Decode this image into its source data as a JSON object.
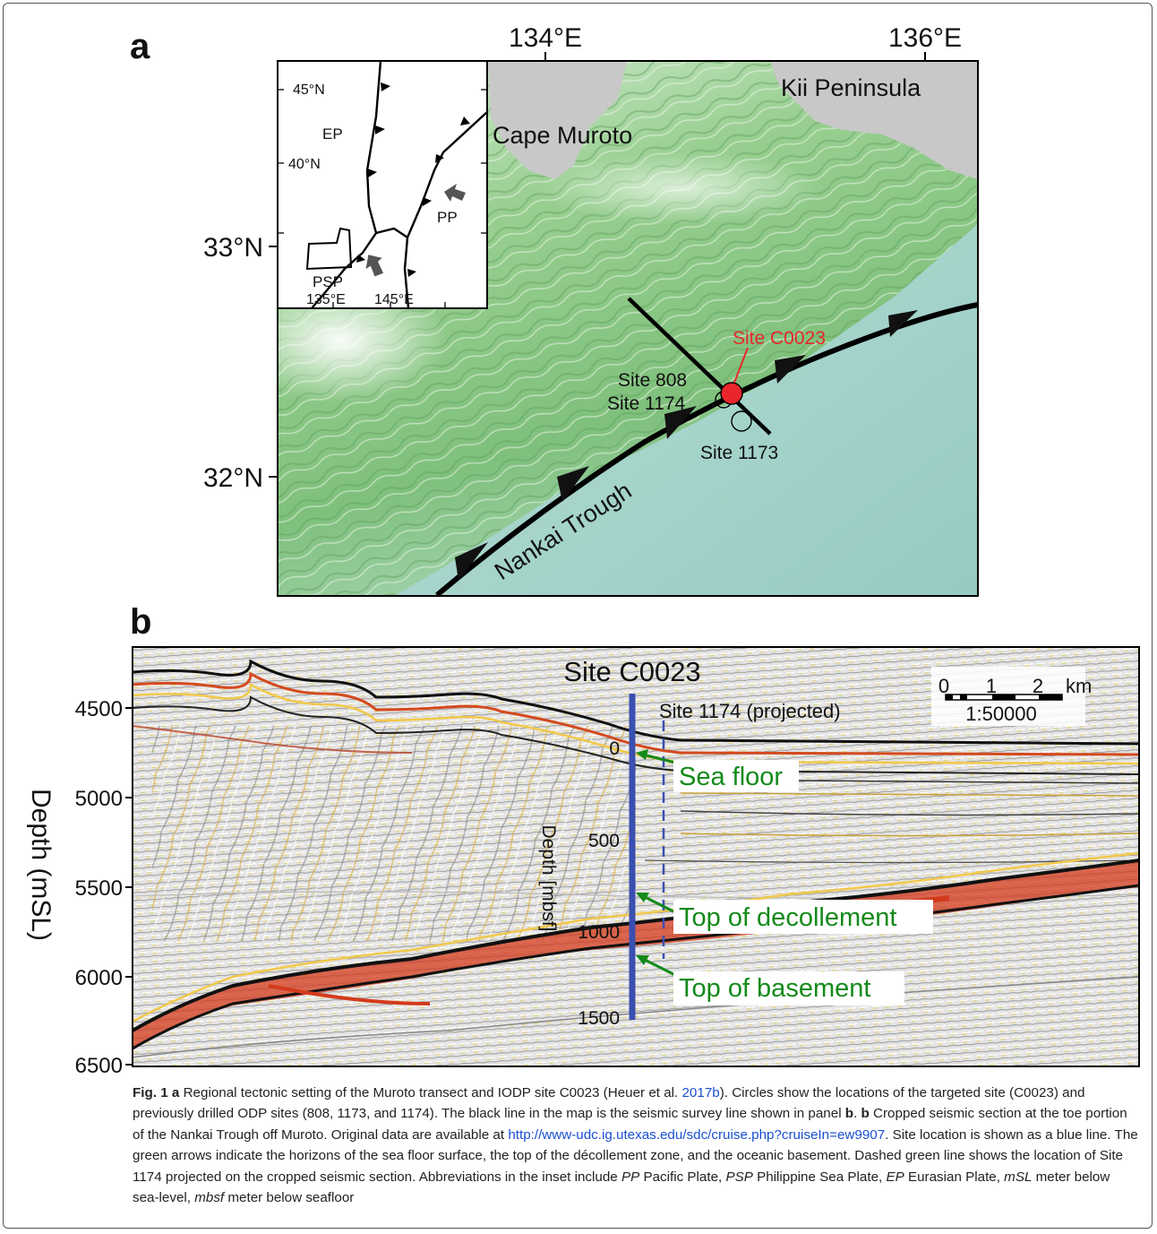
{
  "panel_a": {
    "letter": "a",
    "lon_labels": [
      "134°E",
      "136°E"
    ],
    "lat_labels": [
      "33°N",
      "32°N"
    ],
    "places": {
      "kii": "Kii Peninsula",
      "muroto": "Cape Muroto",
      "trough": "Nankai Trough"
    },
    "sites": {
      "c0023": "Site C0023",
      "s808": "Site 808",
      "s1174": "Site 1174",
      "s1173": "Site 1173"
    },
    "inset": {
      "lat_labels": [
        "45°N",
        "40°N"
      ],
      "lon_labels": [
        "135°E",
        "145°E"
      ],
      "plates": {
        "ep": "EP",
        "pp": "PP",
        "psp": "PSP"
      }
    },
    "colors": {
      "site_marker": "#e8262b",
      "site_label": "#e8262b",
      "land": "#c8c8c8"
    }
  },
  "panel_b": {
    "letter": "b",
    "ylabel": "Depth (mSL)",
    "yticks": [
      "4500",
      "5000",
      "5500",
      "6000",
      "6500"
    ],
    "site_title": "Site C0023",
    "projected_label": "Site 1174 (projected)",
    "mbsf_label": "Depth [mbsf]",
    "mbsf_ticks": [
      "0",
      "500",
      "1000",
      "1500"
    ],
    "horizons": {
      "sea_floor": "Sea floor",
      "decollement": "Top of decollement",
      "basement": "Top of basement"
    },
    "scalebar": {
      "ticks": [
        "0",
        "1",
        "2"
      ],
      "unit": "km",
      "scale": "1:50000"
    },
    "colors": {
      "site_line": "#3a4fb0",
      "annotation": "#138a1a"
    }
  },
  "caption": {
    "fig": "Fig. 1",
    "a_letter": "a",
    "part1": " Regional tectonic setting of the Muroto transect and IODP site C0023 (Heuer et al. ",
    "ref": "2017b",
    "part2": "). Circles show the locations of the targeted site (C0023) and previously drilled ODP sites (808, 1173, and 1174). The black line in the map is the seismic survey line shown in panel ",
    "b1": "b",
    "part3": ". ",
    "b2": "b",
    "part4": " Cropped seismic section at the toe portion of the Nankai Trough off Muroto. Original data are available at ",
    "url": "http://www-udc.ig.utexas.edu/sdc/cruise.php?cruiseIn=ew9907",
    "part5": ". Site location is shown as a blue line. The green arrows indicate the horizons of the sea floor surface, the top of the décollement zone, and the oceanic basement. Dashed green line shows the location of Site 1174 projected on the cropped seismic section. Abbreviations in the inset include ",
    "ab_pp": "PP",
    "def_pp": " Pacific Plate, ",
    "ab_psp": "PSP",
    "def_psp": " Philippine Sea Plate, ",
    "ab_ep": "EP",
    "def_ep": " Eurasian Plate, ",
    "ab_msl": "mSL",
    "def_msl": " meter below sea-level, ",
    "ab_mbsf": "mbsf",
    "def_mbsf": " meter below seafloor"
  }
}
